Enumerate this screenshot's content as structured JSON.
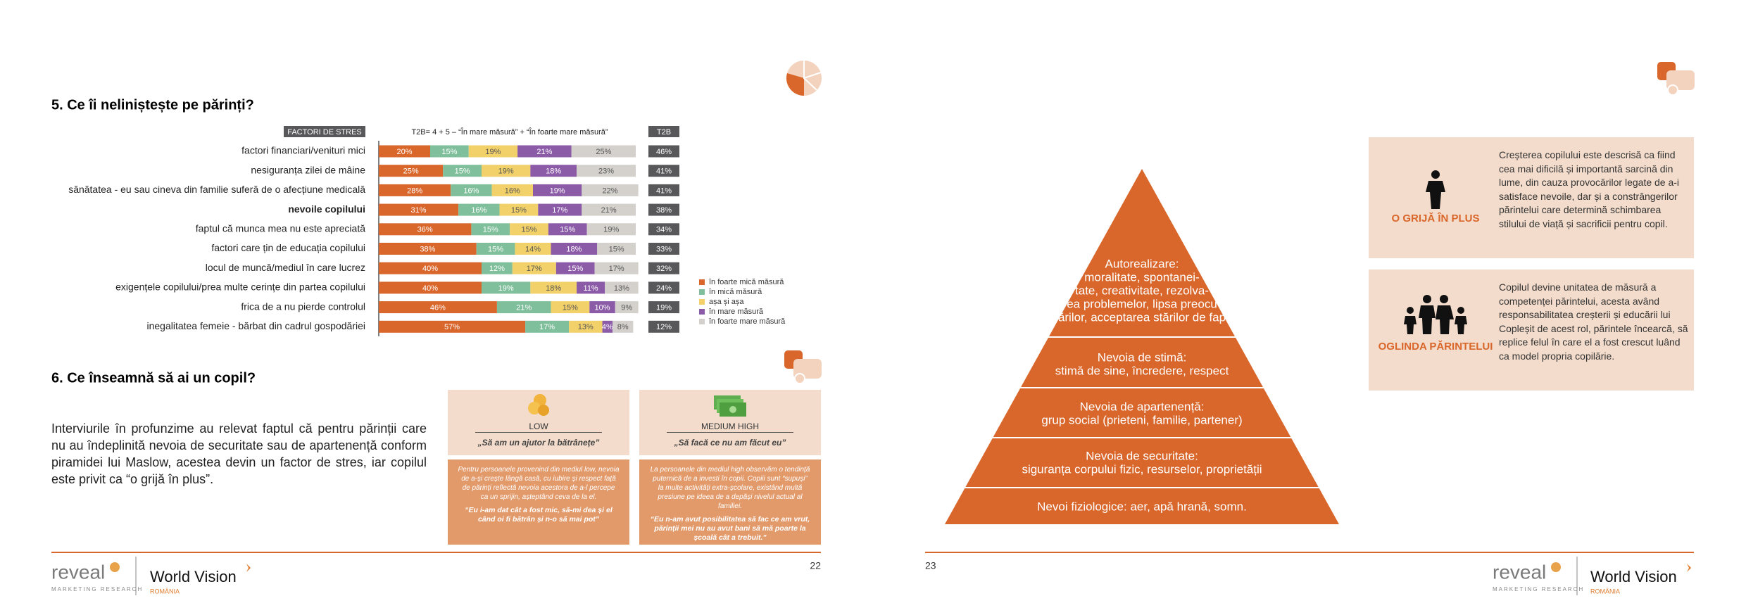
{
  "left_page": {
    "section5_title": "5. Ce îi neliniștește pe părinți?",
    "section6_title": "6. Ce înseamnă să ai un copil?",
    "intro": "Interviurile în profunzime au relevat faptul că pentru părinții care nu au îndeplinită nevoia de securitate sau de apartenență conform piramidei lui Maslow, acestea devin un factor de stres, iar copilul este privit ca “o grijă în plus”.",
    "segments": [
      {
        "title": "LOW",
        "quote": "„Să am un ajutor la bătrânețe”",
        "description": "Pentru persoanele provenind din mediul low, nevoia de a-și crește lângă casă, cu iubire și respect față de părinți reflectă nevoia acestora de a-l percepe ca un sprijin, așteptând ceva de la el.",
        "testimonial": "“Eu i-am dat cât a fost mic, să-mi dea și el când oi fi bătrân și n-o să mai pot”"
      },
      {
        "title": "MEDIUM HIGH",
        "quote": "„Să facă ce nu am făcut eu”",
        "description": "La persoanele din mediul high observăm o tendință puternică de a investi în copii. Copiii sunt “supuși” la multe activități extra-școlare, existând multă presiune pe ideea de a depăși nivelul actual al familiei.",
        "testimonial": "“Eu n-am avut posibilitatea să fac ce am vrut, părinții mei nu au avut bani să mă poarte la școală cât a trebuit.”"
      }
    ],
    "page_number": "22"
  },
  "chart_data": {
    "type": "bar",
    "orientation": "horizontal",
    "stacked": true,
    "header_category": "FACTORI DE STRES",
    "subtitle": "T2B= 4 + 5 – “În mare măsură” + “În foarte mare măsură”",
    "categories": [
      "factori financiari/venituri mici",
      "nesiguranța zilei de mâine",
      "sănătatea - eu sau cineva din familie suferă de o afecțiune medicală",
      "nevoile copilului",
      "faptul că munca mea nu este apreciată",
      "factori care țin de educația copilului",
      "locul de muncă/mediul în care lucrez",
      "exigențele copilului/prea multe cerințe din partea copilului",
      "frica de a nu pierde controlul",
      "inegalitatea femeie - bărbat din cadrul gospodăriei"
    ],
    "xlim": [
      0,
      100
    ],
    "legend": "right",
    "series": [
      {
        "name": "în foarte mică măsură",
        "color": "#d9662a",
        "values": [
          20,
          25,
          28,
          31,
          36,
          38,
          40,
          40,
          46,
          57
        ],
        "value_labels": [
          "20%",
          "25%",
          "28%",
          "31%",
          "36%",
          "38%",
          "40%",
          "40%",
          "46%",
          "57%"
        ]
      },
      {
        "name": "în mică măsură",
        "color": "#7fbf9b",
        "values": [
          15,
          15,
          16,
          16,
          15,
          15,
          12,
          19,
          21,
          17
        ],
        "value_labels": [
          "15%",
          "15%",
          "16%",
          "16%",
          "15%",
          "15%",
          "12%",
          "19%",
          "21%",
          "17%"
        ]
      },
      {
        "name": "așa și așa",
        "color": "#f2d16a",
        "values": [
          19,
          19,
          16,
          15,
          15,
          14,
          17,
          18,
          15,
          13
        ],
        "value_labels": [
          "19%",
          "19%",
          "16%",
          "15%",
          "15%",
          "14%",
          "17%",
          "18%",
          "15%",
          "13%"
        ]
      },
      {
        "name": "în mare măsură",
        "color": "#8b5ba8",
        "values": [
          21,
          18,
          19,
          17,
          15,
          18,
          15,
          11,
          10,
          4
        ],
        "value_labels": [
          "21%",
          "18%",
          "19%",
          "17%",
          "15%",
          "18%",
          "15%",
          "11%",
          "10%",
          "4%"
        ]
      },
      {
        "name": "în foarte mare măsură",
        "color": "#d4d1cc",
        "values": [
          25,
          23,
          22,
          21,
          19,
          15,
          17,
          13,
          9,
          8
        ],
        "value_labels": [
          "25%",
          "23%",
          "22%",
          "21%",
          "19%",
          "15%",
          "17%",
          "13%",
          "9%",
          "8%"
        ]
      }
    ],
    "t2b": {
      "title": "T2B",
      "color": "#58585a",
      "values": [
        46,
        41,
        41,
        38,
        34,
        33,
        32,
        24,
        19,
        12
      ],
      "value_labels": [
        "46%",
        "41%",
        "41%",
        "38%",
        "34%",
        "33%",
        "32%",
        "24%",
        "19%",
        "12%"
      ]
    }
  },
  "right_page": {
    "pyramid": [
      {
        "title": "Autorealizare:",
        "lines": [
          "moralitate, spontanei-",
          "tate, creativitate, rezolva-",
          "rea problemelor, lipsa preocu-",
          "părilor, acceptarea stărilor de fapt."
        ]
      },
      {
        "title": "Nevoia de stimă:",
        "lines": [
          "stimă de sine, încredere, respect"
        ]
      },
      {
        "title": "Nevoia de apartenență:",
        "lines": [
          "grup social (prieteni, familie, partener)"
        ]
      },
      {
        "title": "Nevoia de securitate:",
        "lines": [
          "siguranța corpului fizic, resurselor, proprietății"
        ]
      },
      {
        "title": "Nevoi fiziologice: aer, apă hrană, somn.",
        "lines": []
      }
    ],
    "boxes": [
      {
        "label": "O GRIJĂ ÎN PLUS",
        "text": "Creșterea copilului este descrisă ca fiind cea mai dificilă și importantă sarcină din lume, din cauza provocărilor legate de a-i satisface nevoile, dar și a constrângerilor părintelui care determină schimbarea stilului de viață și sacrificii pentru copil."
      },
      {
        "label": "OGLINDA PĂRINTELUI",
        "text": "Copilul devine unitatea de măsură a competenței părintelui, acesta având responsabilitatea creșterii și educării lui Copleșit de acest rol, părintele încearcă, să replice felul în care el a fost crescut luând ca model propria copilărie."
      }
    ],
    "page_number": "23"
  },
  "footer": {
    "brand1": "reveal",
    "brand1_sub": "MARKETING RESEARCH",
    "brand2": "World Vision",
    "brand2_sub": "ROMÂNIA"
  }
}
